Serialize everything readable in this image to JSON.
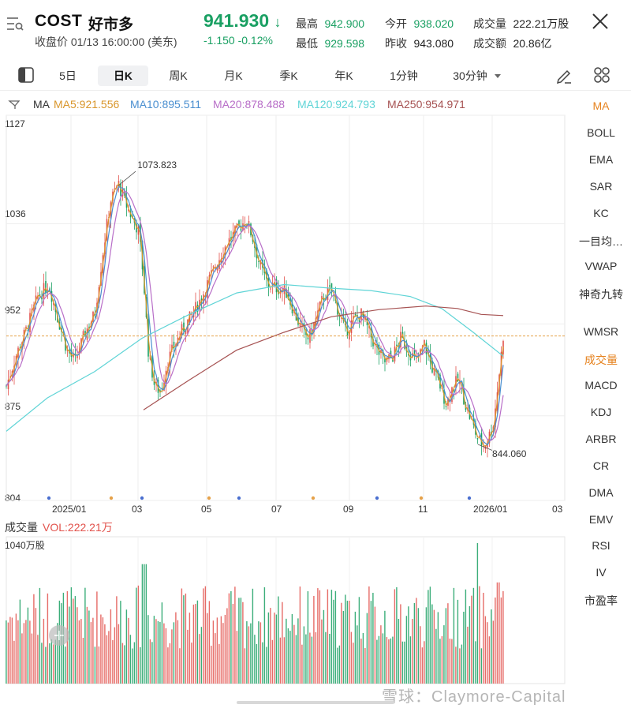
{
  "header": {
    "ticker": "COST",
    "name": "好市多",
    "status": "收盘价 01/13 16:00:00 (美东)",
    "price": "941.930",
    "price_arrow": "↓",
    "change": "-1.150 -0.12%",
    "stats": [
      {
        "label": "最高",
        "value": "942.900",
        "color": "green"
      },
      {
        "label": "今开",
        "value": "938.020",
        "color": "green"
      },
      {
        "label": "成交量",
        "value": "222.21万股",
        "color": "black"
      },
      {
        "label": "最低",
        "value": "929.598",
        "color": "green"
      },
      {
        "label": "昨收",
        "value": "943.080",
        "color": "black"
      },
      {
        "label": "成交额",
        "value": "20.86亿",
        "color": "black"
      }
    ]
  },
  "tabs": [
    "5日",
    "日K",
    "周K",
    "月K",
    "季K",
    "年K",
    "1分钟",
    "30分钟"
  ],
  "active_tab": "日K",
  "ma_legend": {
    "label": "MA",
    "items": [
      {
        "text": "MA5:921.556",
        "color": "#d9962b"
      },
      {
        "text": "MA10:895.511",
        "color": "#4a8fd0"
      },
      {
        "text": "MA20:878.488",
        "color": "#b86ec8"
      },
      {
        "text": "MA120:924.793",
        "color": "#5fd4d6"
      },
      {
        "text": "MA250:954.971",
        "color": "#a65252"
      }
    ]
  },
  "price_axis": [
    "1127",
    "1036",
    "952",
    "875",
    "804"
  ],
  "date_axis": [
    "2025/01",
    "03",
    "05",
    "07",
    "09",
    "11",
    "2026/01",
    "03"
  ],
  "annotations": {
    "high": "1073.823",
    "low": "844.060"
  },
  "volume": {
    "title": "成交量",
    "vol_label": "VOL:222.21万",
    "max_label": "1040万股"
  },
  "side_indicators": [
    {
      "label": "MA",
      "active": true
    },
    {
      "label": "BOLL",
      "active": false
    },
    {
      "label": "EMA",
      "active": false
    },
    {
      "label": "SAR",
      "active": false
    },
    {
      "label": "KC",
      "active": false
    },
    {
      "label": "一目均…",
      "active": false
    },
    {
      "label": "VWAP",
      "active": false
    },
    {
      "label": "神奇九转",
      "active": false
    },
    {
      "label": "WMSR",
      "active": false
    },
    {
      "label": "成交量",
      "active": true
    },
    {
      "label": "MACD",
      "active": false
    },
    {
      "label": "KDJ",
      "active": false
    },
    {
      "label": "ARBR",
      "active": false
    },
    {
      "label": "CR",
      "active": false
    },
    {
      "label": "DMA",
      "active": false
    },
    {
      "label": "EMV",
      "active": false
    },
    {
      "label": "RSI",
      "active": false
    },
    {
      "label": "IV",
      "active": false
    },
    {
      "label": "市盈率",
      "active": false
    }
  ],
  "watermark": "雪球：Claymore-Capital",
  "colors": {
    "up": "#e2524c",
    "down": "#1aa063",
    "bg": "#ffffff"
  },
  "chart_data": {
    "type": "candlestick",
    "ylim": [
      804,
      1127
    ],
    "yticks": [
      1127,
      1036,
      952,
      875,
      804
    ],
    "series_names": [
      "MA5",
      "MA10",
      "MA20",
      "MA120",
      "MA250"
    ],
    "close_approx": [
      {
        "x": "2024/12",
        "y": 880
      },
      {
        "x": "2025/01",
        "y": 920
      },
      {
        "x": "2025/02",
        "y": 1073.823
      },
      {
        "x": "2025/03",
        "y": 900
      },
      {
        "x": "2025/04",
        "y": 980
      },
      {
        "x": "2025/05",
        "y": 1040
      },
      {
        "x": "2025/06",
        "y": 990
      },
      {
        "x": "2025/07",
        "y": 960
      },
      {
        "x": "2025/08",
        "y": 950
      },
      {
        "x": "2025/09",
        "y": 930
      },
      {
        "x": "2025/10",
        "y": 920
      },
      {
        "x": "2025/11",
        "y": 880
      },
      {
        "x": "2025/12",
        "y": 860
      },
      {
        "x": "2026/01",
        "y": 941.93
      }
    ]
  }
}
